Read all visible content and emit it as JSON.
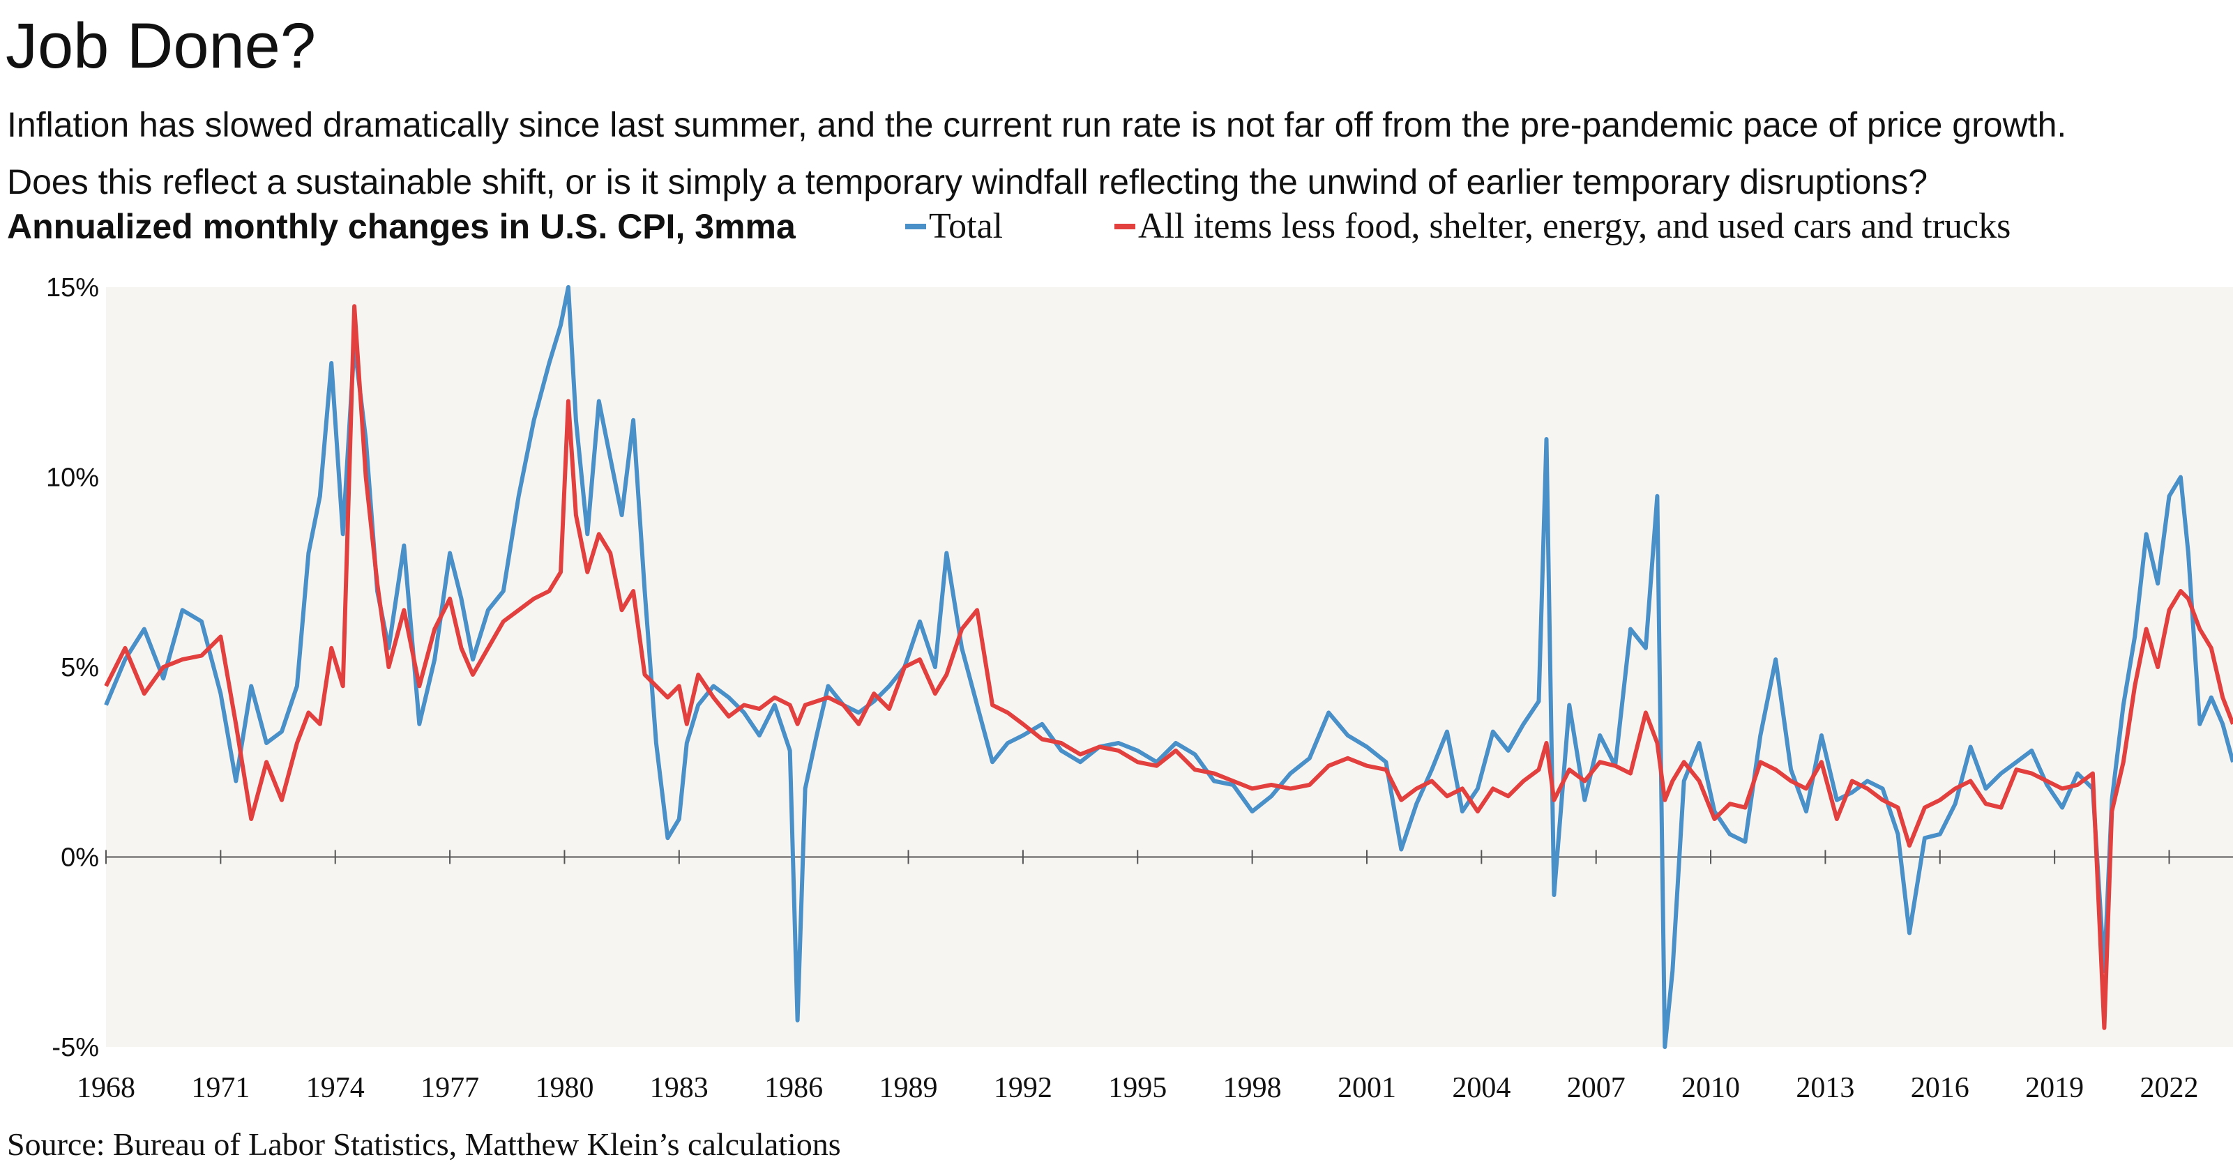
{
  "title": "Job Done?",
  "subtitle_lines": [
    "Inflation has slowed dramatically since last summer, and the current run rate is not far off from the pre-pandemic pace of price growth.",
    "Does this reflect a sustainable shift, or is it simply a temporary windfall reflecting the unwind of earlier temporary disruptions?"
  ],
  "source": "Source: Bureau of Labor Statistics, Matthew Klein’s calculations",
  "colors": {
    "total": "#4a90c8",
    "core": "#e2403f",
    "plot_background": "#f7f5f2",
    "zero_line": "#555555"
  },
  "chart_data": {
    "type": "line",
    "title": "Annualized monthly changes in U.S. CPI, 3mma",
    "xlabel": "",
    "ylabel": "",
    "ylim": [
      -5,
      15
    ],
    "xlim": [
      1968.0,
      2023.67
    ],
    "yticks": [
      15,
      10,
      5,
      0,
      -5
    ],
    "ytick_labels": [
      "15%",
      "10%",
      "5%",
      "0%",
      "-5%"
    ],
    "xticks": [
      1968,
      1971,
      1974,
      1977,
      1980,
      1983,
      1986,
      1989,
      1992,
      1995,
      1998,
      2001,
      2004,
      2007,
      2010,
      2013,
      2016,
      2019,
      2022
    ],
    "xtick_labels": [
      "1968",
      "1971",
      "1974",
      "1977",
      "1980",
      "1983",
      "1986",
      "1989",
      "1992",
      "1995",
      "1998",
      "2001",
      "2004",
      "2007",
      "2010",
      "2013",
      "2016",
      "2019",
      "2022"
    ],
    "grid": false,
    "legend_position": "top",
    "series": [
      {
        "name": "Total",
        "x": [
          1968.0,
          1968.5,
          1969.0,
          1969.5,
          1970.0,
          1970.5,
          1971.0,
          1971.4,
          1971.8,
          1972.2,
          1972.6,
          1973.0,
          1973.3,
          1973.6,
          1973.9,
          1974.2,
          1974.5,
          1974.8,
          1975.1,
          1975.4,
          1975.8,
          1976.2,
          1976.6,
          1977.0,
          1977.3,
          1977.6,
          1978.0,
          1978.4,
          1978.8,
          1979.2,
          1979.6,
          1979.9,
          1980.1,
          1980.3,
          1980.6,
          1980.9,
          1981.2,
          1981.5,
          1981.8,
          1982.1,
          1982.4,
          1982.7,
          1983.0,
          1983.2,
          1983.5,
          1983.9,
          1984.3,
          1984.7,
          1985.1,
          1985.5,
          1985.9,
          1986.1,
          1986.3,
          1986.6,
          1986.9,
          1987.3,
          1987.7,
          1988.1,
          1988.5,
          1988.9,
          1989.3,
          1989.7,
          1990.0,
          1990.4,
          1990.8,
          1991.2,
          1991.6,
          1992.0,
          1992.5,
          1993.0,
          1993.5,
          1994.0,
          1994.5,
          1995.0,
          1995.5,
          1996.0,
          1996.5,
          1997.0,
          1997.5,
          1998.0,
          1998.5,
          1999.0,
          1999.5,
          2000.0,
          2000.5,
          2001.0,
          2001.5,
          2001.9,
          2002.3,
          2002.7,
          2003.1,
          2003.5,
          2003.9,
          2004.3,
          2004.7,
          2005.1,
          2005.5,
          2005.7,
          2005.9,
          2006.3,
          2006.7,
          2007.1,
          2007.5,
          2007.9,
          2008.3,
          2008.6,
          2008.8,
          2009.0,
          2009.3,
          2009.7,
          2010.1,
          2010.5,
          2010.9,
          2011.3,
          2011.7,
          2012.1,
          2012.5,
          2012.9,
          2013.3,
          2013.7,
          2014.1,
          2014.5,
          2014.9,
          2015.2,
          2015.6,
          2016.0,
          2016.4,
          2016.8,
          2017.2,
          2017.6,
          2018.0,
          2018.4,
          2018.8,
          2019.2,
          2019.6,
          2020.0,
          2020.3,
          2020.5,
          2020.8,
          2021.1,
          2021.4,
          2021.7,
          2022.0,
          2022.3,
          2022.5,
          2022.8,
          2023.1,
          2023.4,
          2023.67
        ],
        "y": [
          4.0,
          5.2,
          6.0,
          4.7,
          6.5,
          6.2,
          4.3,
          2.0,
          4.5,
          3.0,
          3.3,
          4.5,
          8.0,
          9.5,
          13.0,
          8.5,
          13.5,
          11.0,
          7.0,
          5.5,
          8.2,
          3.5,
          5.2,
          8.0,
          6.8,
          5.2,
          6.5,
          7.0,
          9.5,
          11.5,
          13.0,
          14.0,
          15.0,
          11.5,
          8.5,
          12.0,
          10.5,
          9.0,
          11.5,
          7.0,
          3.0,
          0.5,
          1.0,
          3.0,
          4.0,
          4.5,
          4.2,
          3.8,
          3.2,
          4.0,
          2.8,
          -4.3,
          1.8,
          3.2,
          4.5,
          4.0,
          3.8,
          4.1,
          4.5,
          5.0,
          6.2,
          5.0,
          8.0,
          5.5,
          4.0,
          2.5,
          3.0,
          3.2,
          3.5,
          2.8,
          2.5,
          2.9,
          3.0,
          2.8,
          2.5,
          3.0,
          2.7,
          2.0,
          1.9,
          1.2,
          1.6,
          2.2,
          2.6,
          3.8,
          3.2,
          2.9,
          2.5,
          0.2,
          1.4,
          2.3,
          3.3,
          1.2,
          1.8,
          3.3,
          2.8,
          3.5,
          4.1,
          11.0,
          -1.0,
          4.0,
          1.5,
          3.2,
          2.4,
          6.0,
          5.5,
          9.5,
          -5.0,
          -3.0,
          2.0,
          3.0,
          1.2,
          0.6,
          0.4,
          3.2,
          5.2,
          2.3,
          1.2,
          3.2,
          1.5,
          1.7,
          2.0,
          1.8,
          0.6,
          -2.0,
          0.5,
          0.6,
          1.4,
          2.9,
          1.8,
          2.2,
          2.5,
          2.8,
          1.9,
          1.3,
          2.2,
          1.8,
          -3.0,
          1.5,
          4.0,
          5.8,
          8.5,
          7.2,
          9.5,
          10.0,
          8.0,
          3.5,
          4.2,
          3.5,
          2.5
        ]
      },
      {
        "name": "All items less food, shelter, energy, and used cars and trucks",
        "x": [
          1968.0,
          1968.5,
          1969.0,
          1969.5,
          1970.0,
          1970.5,
          1971.0,
          1971.4,
          1971.8,
          1972.2,
          1972.6,
          1973.0,
          1973.3,
          1973.6,
          1973.9,
          1974.2,
          1974.5,
          1974.8,
          1975.1,
          1975.4,
          1975.8,
          1976.2,
          1976.6,
          1977.0,
          1977.3,
          1977.6,
          1978.0,
          1978.4,
          1978.8,
          1979.2,
          1979.6,
          1979.9,
          1980.1,
          1980.3,
          1980.6,
          1980.9,
          1981.2,
          1981.5,
          1981.8,
          1982.1,
          1982.4,
          1982.7,
          1983.0,
          1983.2,
          1983.5,
          1983.9,
          1984.3,
          1984.7,
          1985.1,
          1985.5,
          1985.9,
          1986.1,
          1986.3,
          1986.6,
          1986.9,
          1987.3,
          1987.7,
          1988.1,
          1988.5,
          1988.9,
          1989.3,
          1989.7,
          1990.0,
          1990.4,
          1990.8,
          1991.2,
          1991.6,
          1992.0,
          1992.5,
          1993.0,
          1993.5,
          1994.0,
          1994.5,
          1995.0,
          1995.5,
          1996.0,
          1996.5,
          1997.0,
          1997.5,
          1998.0,
          1998.5,
          1999.0,
          1999.5,
          2000.0,
          2000.5,
          2001.0,
          2001.5,
          2001.9,
          2002.3,
          2002.7,
          2003.1,
          2003.5,
          2003.9,
          2004.3,
          2004.7,
          2005.1,
          2005.5,
          2005.7,
          2005.9,
          2006.3,
          2006.7,
          2007.1,
          2007.5,
          2007.9,
          2008.3,
          2008.6,
          2008.8,
          2009.0,
          2009.3,
          2009.7,
          2010.1,
          2010.5,
          2010.9,
          2011.3,
          2011.7,
          2012.1,
          2012.5,
          2012.9,
          2013.3,
          2013.7,
          2014.1,
          2014.5,
          2014.9,
          2015.2,
          2015.6,
          2016.0,
          2016.4,
          2016.8,
          2017.2,
          2017.6,
          2018.0,
          2018.4,
          2018.8,
          2019.2,
          2019.6,
          2020.0,
          2020.3,
          2020.5,
          2020.8,
          2021.1,
          2021.4,
          2021.7,
          2022.0,
          2022.3,
          2022.5,
          2022.8,
          2023.1,
          2023.4,
          2023.67
        ],
        "y": [
          4.5,
          5.5,
          4.3,
          5.0,
          5.2,
          5.3,
          5.8,
          3.5,
          1.0,
          2.5,
          1.5,
          3.0,
          3.8,
          3.5,
          5.5,
          4.5,
          14.5,
          10.0,
          7.2,
          5.0,
          6.5,
          4.5,
          6.0,
          6.8,
          5.5,
          4.8,
          5.5,
          6.2,
          6.5,
          6.8,
          7.0,
          7.5,
          12.0,
          9.0,
          7.5,
          8.5,
          8.0,
          6.5,
          7.0,
          4.8,
          4.5,
          4.2,
          4.5,
          3.5,
          4.8,
          4.2,
          3.7,
          4.0,
          3.9,
          4.2,
          4.0,
          3.5,
          4.0,
          4.1,
          4.2,
          4.0,
          3.5,
          4.3,
          3.9,
          5.0,
          5.2,
          4.3,
          4.8,
          6.0,
          6.5,
          4.0,
          3.8,
          3.5,
          3.1,
          3.0,
          2.7,
          2.9,
          2.8,
          2.5,
          2.4,
          2.8,
          2.3,
          2.2,
          2.0,
          1.8,
          1.9,
          1.8,
          1.9,
          2.4,
          2.6,
          2.4,
          2.3,
          1.5,
          1.8,
          2.0,
          1.6,
          1.8,
          1.2,
          1.8,
          1.6,
          2.0,
          2.3,
          3.0,
          1.5,
          2.3,
          2.0,
          2.5,
          2.4,
          2.2,
          3.8,
          3.0,
          1.5,
          2.0,
          2.5,
          2.0,
          1.0,
          1.4,
          1.3,
          2.5,
          2.3,
          2.0,
          1.8,
          2.5,
          1.0,
          2.0,
          1.8,
          1.5,
          1.3,
          0.3,
          1.3,
          1.5,
          1.8,
          2.0,
          1.4,
          1.3,
          2.3,
          2.2,
          2.0,
          1.8,
          1.9,
          2.2,
          -4.5,
          1.2,
          2.5,
          4.5,
          6.0,
          5.0,
          6.5,
          7.0,
          6.8,
          6.0,
          5.5,
          4.2,
          3.5
        ]
      }
    ]
  }
}
